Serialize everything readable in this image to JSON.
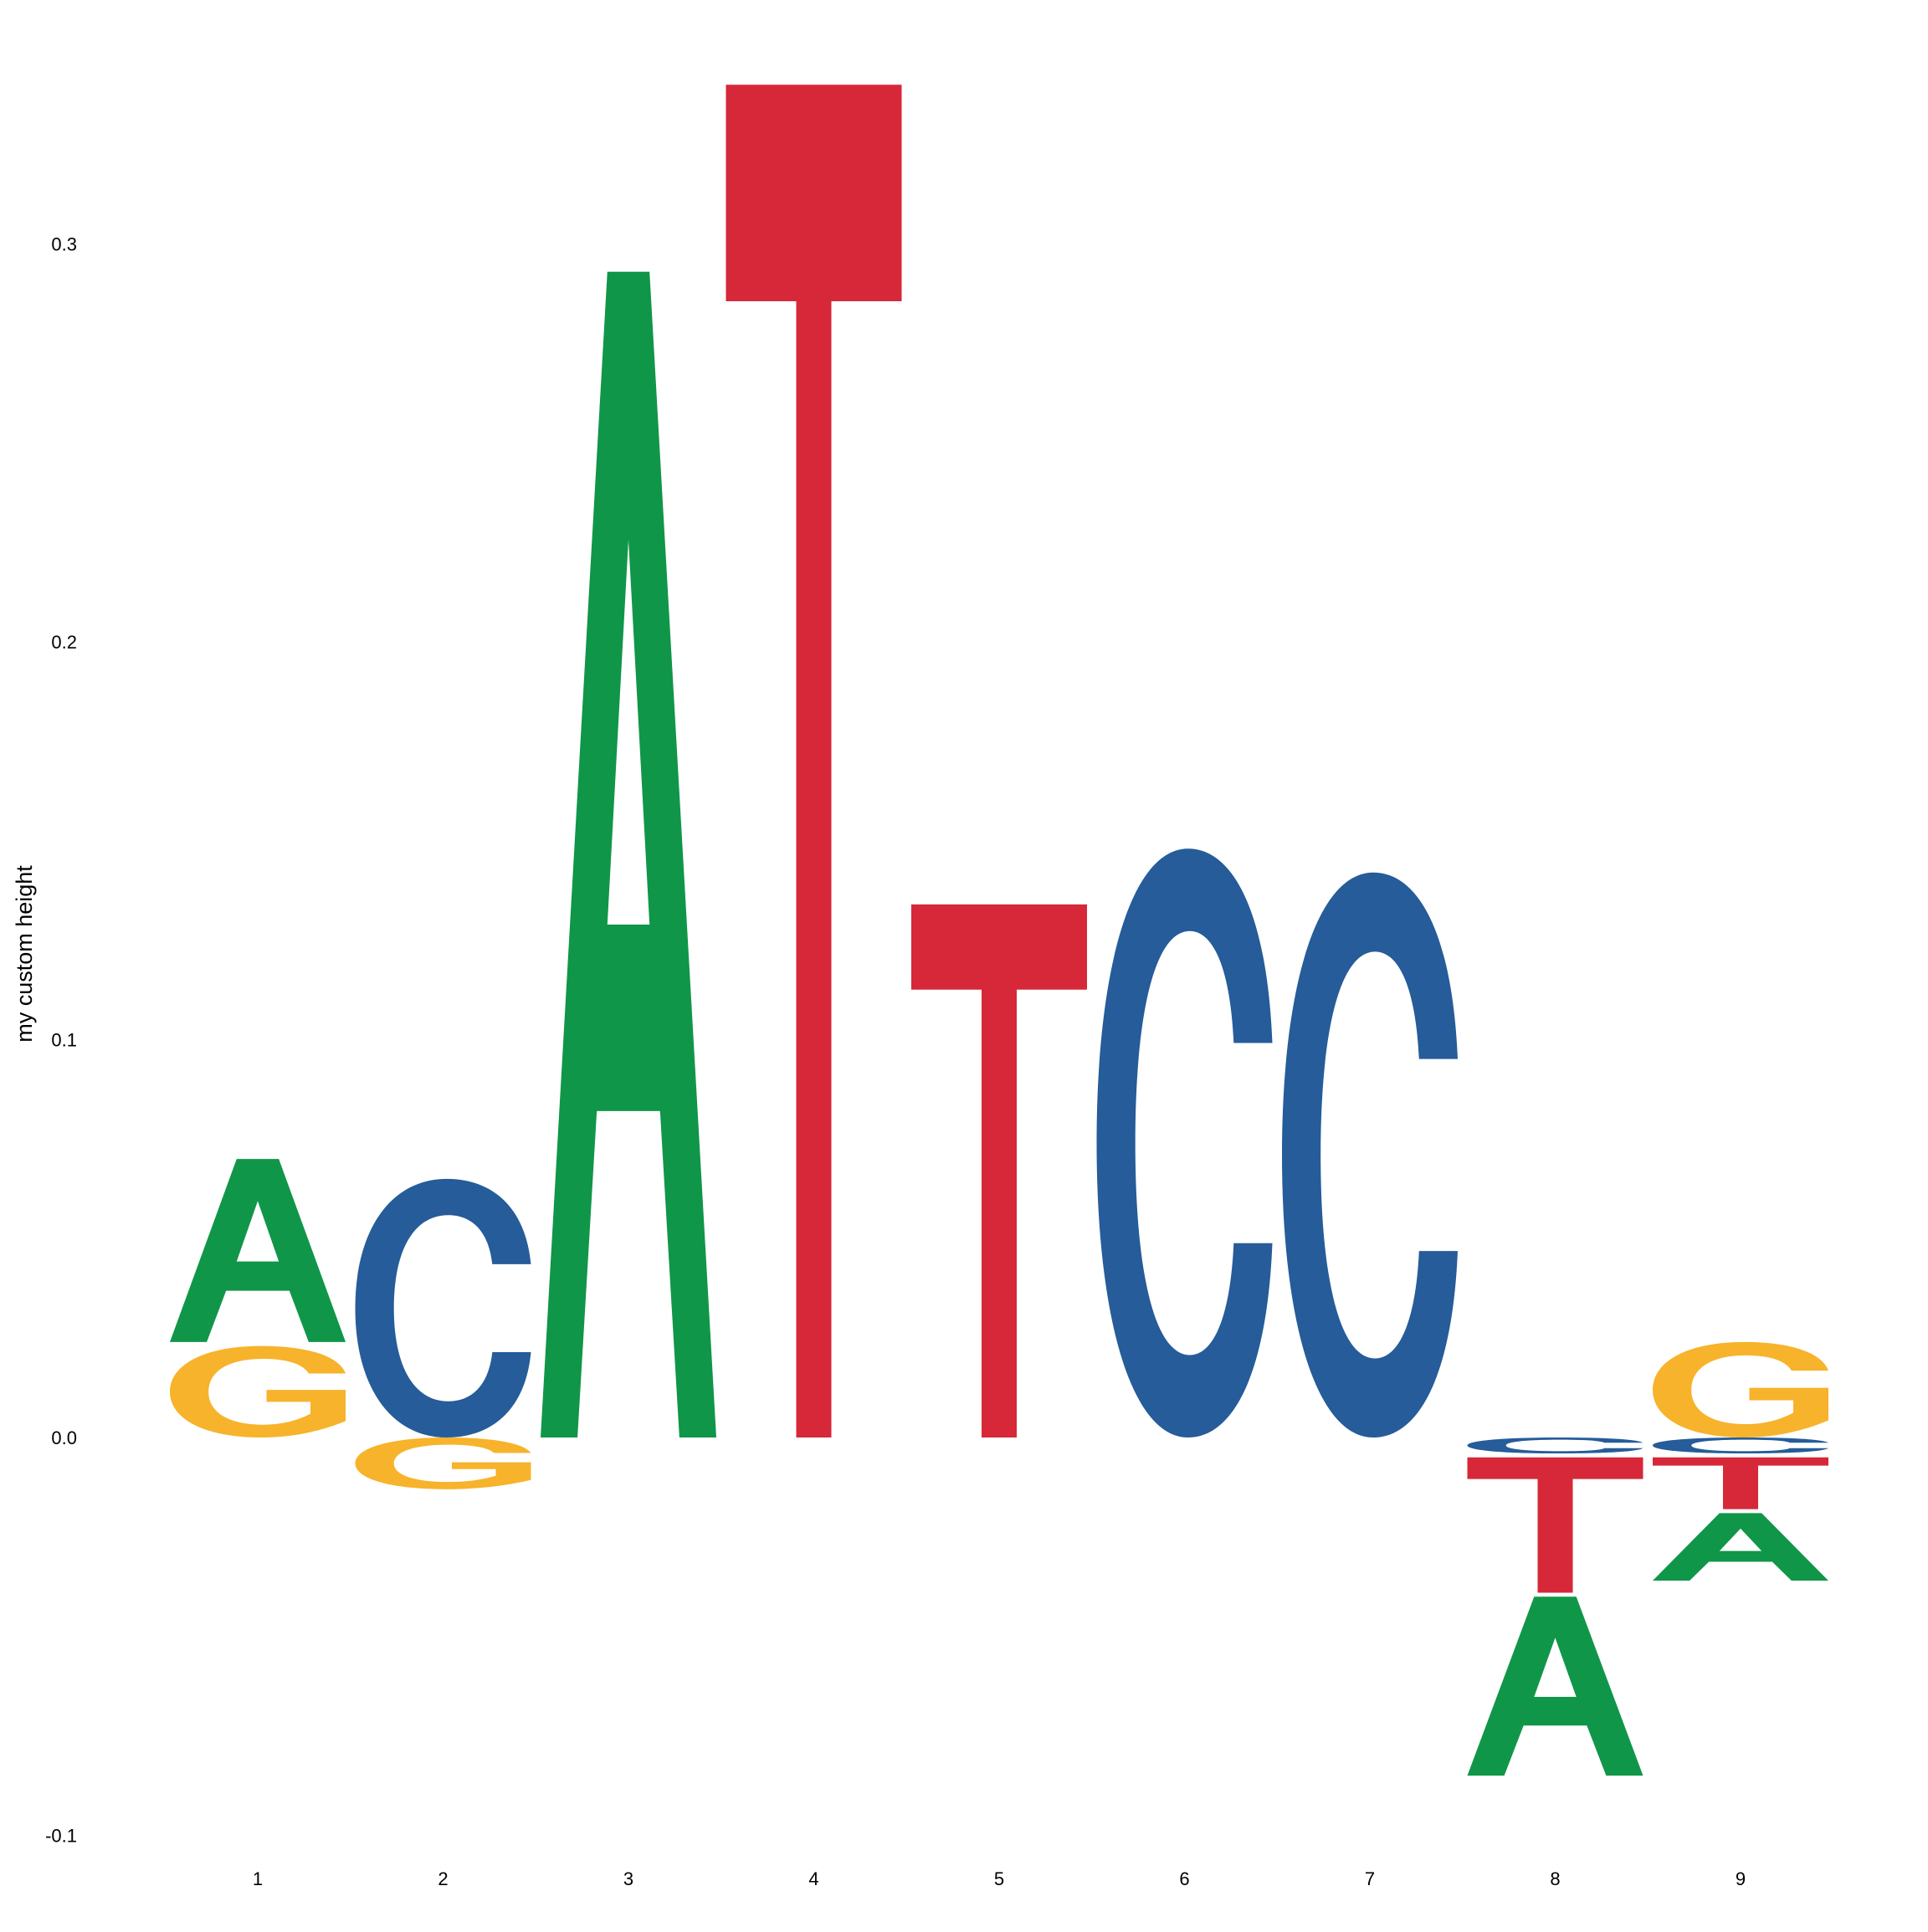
{
  "chart_data": {
    "type": "sequence-logo",
    "title": "",
    "xlabel": "",
    "ylabel": "my custom height",
    "ylim": [
      -0.1,
      0.34
    ],
    "grid": false,
    "legend": "none",
    "y_ticks": [
      {
        "value": -0.1,
        "label": "-0.1"
      },
      {
        "value": 0.0,
        "label": "0.0"
      },
      {
        "value": 0.1,
        "label": "0.1"
      },
      {
        "value": 0.2,
        "label": "0.2"
      },
      {
        "value": 0.3,
        "label": "0.3"
      }
    ],
    "positions": [
      "1",
      "2",
      "3",
      "4",
      "5",
      "6",
      "7",
      "8",
      "9"
    ],
    "colors": {
      "A": "#109648",
      "C": "#255C99",
      "G": "#F7B32B",
      "T": "#D62839"
    },
    "letters": [
      {
        "pos": "1",
        "letter": "G",
        "y0": 0.0,
        "y1": 0.023
      },
      {
        "pos": "1",
        "letter": "A",
        "y0": 0.024,
        "y1": 0.07
      },
      {
        "pos": "2",
        "letter": "G",
        "y0": -0.013,
        "y1": 0.0
      },
      {
        "pos": "2",
        "letter": "C",
        "y0": 0.0,
        "y1": 0.065
      },
      {
        "pos": "3",
        "letter": "A",
        "y0": 0.0,
        "y1": 0.293
      },
      {
        "pos": "4",
        "letter": "T",
        "y0": 0.0,
        "y1": 0.34
      },
      {
        "pos": "5",
        "letter": "T",
        "y0": 0.0,
        "y1": 0.134
      },
      {
        "pos": "6",
        "letter": "C",
        "y0": 0.0,
        "y1": 0.148
      },
      {
        "pos": "7",
        "letter": "C",
        "y0": 0.0,
        "y1": 0.142
      },
      {
        "pos": "8",
        "letter": "C",
        "y0": -0.004,
        "y1": 0.0
      },
      {
        "pos": "8",
        "letter": "T",
        "y0": -0.039,
        "y1": -0.005
      },
      {
        "pos": "8",
        "letter": "A",
        "y0": -0.085,
        "y1": -0.04
      },
      {
        "pos": "9",
        "letter": "G",
        "y0": 0.0,
        "y1": 0.024
      },
      {
        "pos": "9",
        "letter": "C",
        "y0": -0.004,
        "y1": 0.0
      },
      {
        "pos": "9",
        "letter": "T",
        "y0": -0.018,
        "y1": -0.005
      },
      {
        "pos": "9",
        "letter": "A",
        "y0": -0.036,
        "y1": -0.019
      }
    ]
  }
}
